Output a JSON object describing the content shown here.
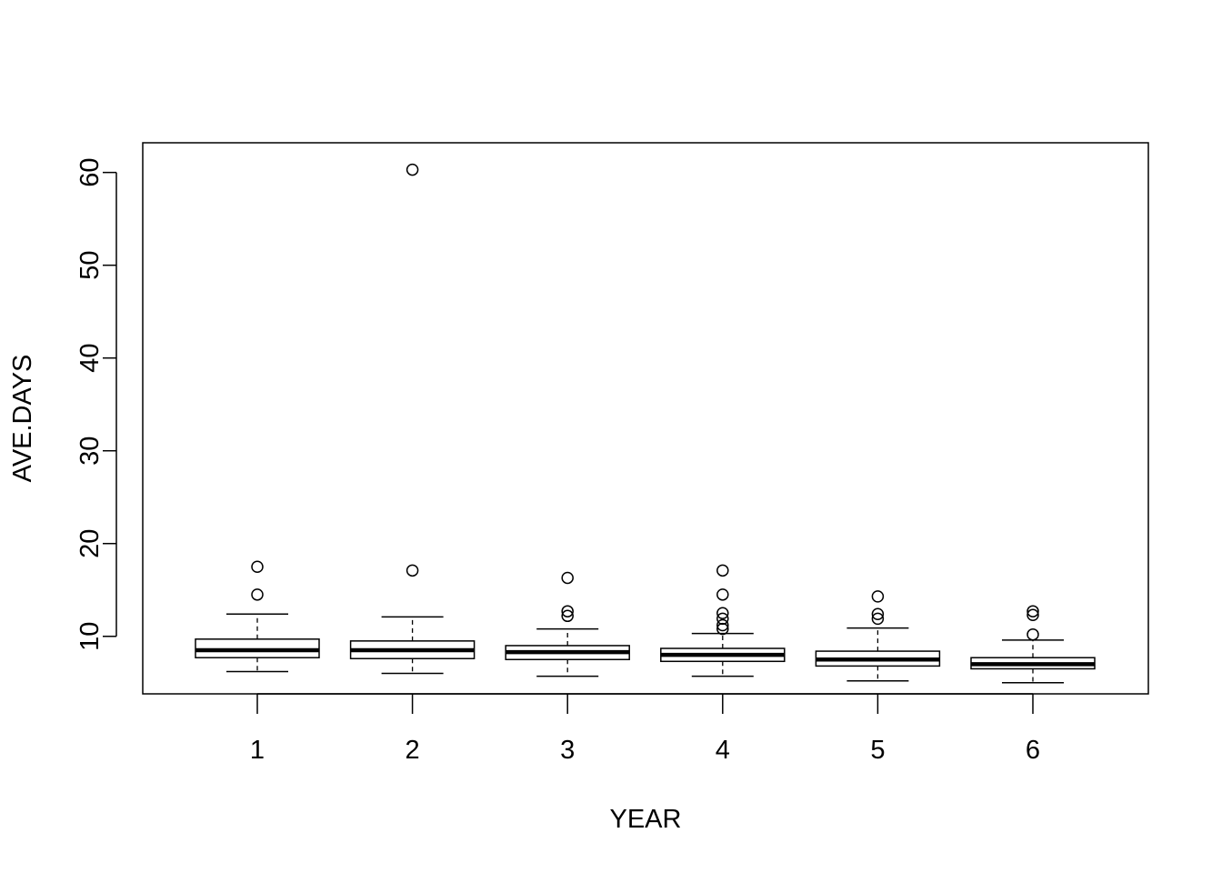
{
  "chart_data": {
    "type": "boxplot",
    "title": "",
    "xlabel": "YEAR",
    "ylabel": "AVE.DAYS",
    "categories": [
      "1",
      "2",
      "3",
      "4",
      "5",
      "6"
    ],
    "ylim": [
      3.8,
      63.2
    ],
    "yticks": [
      10,
      20,
      30,
      40,
      50,
      60
    ],
    "grid": false,
    "legend": "none",
    "colors": {
      "box_fill": "#ffffff",
      "stroke": "#000000"
    },
    "boxes": [
      {
        "category": "1",
        "whisker_low": 6.2,
        "q1": 7.7,
        "median": 8.5,
        "q3": 9.7,
        "whisker_high": 12.4,
        "outliers": [
          14.5,
          17.5
        ]
      },
      {
        "category": "2",
        "whisker_low": 6.0,
        "q1": 7.6,
        "median": 8.5,
        "q3": 9.5,
        "whisker_high": 12.1,
        "outliers": [
          17.1,
          60.3
        ]
      },
      {
        "category": "3",
        "whisker_low": 5.7,
        "q1": 7.5,
        "median": 8.3,
        "q3": 9.0,
        "whisker_high": 10.8,
        "outliers": [
          12.2,
          12.7,
          16.3
        ]
      },
      {
        "category": "4",
        "whisker_low": 5.7,
        "q1": 7.3,
        "median": 8.0,
        "q3": 8.7,
        "whisker_high": 10.3,
        "outliers": [
          10.8,
          11.2,
          11.9,
          12.5,
          14.5,
          17.1
        ]
      },
      {
        "category": "5",
        "whisker_low": 5.2,
        "q1": 6.8,
        "median": 7.5,
        "q3": 8.4,
        "whisker_high": 10.9,
        "outliers": [
          11.9,
          12.4,
          14.3
        ]
      },
      {
        "category": "6",
        "whisker_low": 5.0,
        "q1": 6.5,
        "median": 7.0,
        "q3": 7.7,
        "whisker_high": 9.6,
        "outliers": [
          10.2,
          12.3,
          12.7
        ]
      }
    ]
  }
}
